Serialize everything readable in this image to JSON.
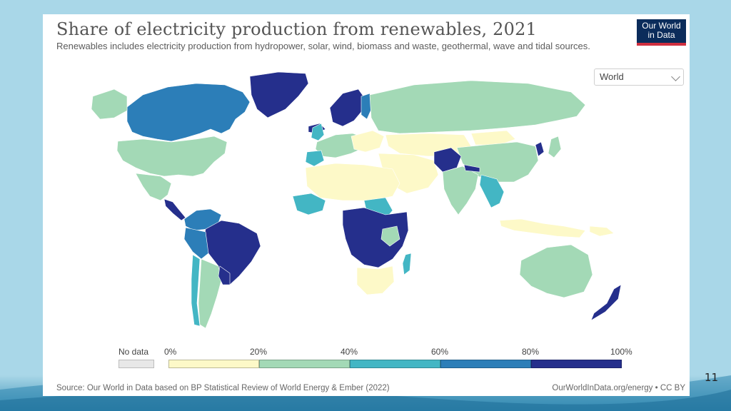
{
  "slide": {
    "number": "11"
  },
  "chart": {
    "title": "Share of electricity production from renewables, 2021",
    "subtitle": "Renewables includes electricity production from hydropower, solar, wind, biomass and waste, geothermal, wave and tidal sources.",
    "logo": {
      "line1": "Our World",
      "line2": "in Data"
    },
    "region_select": {
      "value": "World"
    },
    "legend": {
      "no_data_label": "No data",
      "ticks": [
        "0%",
        "20%",
        "40%",
        "60%",
        "80%",
        "100%"
      ],
      "bins": [
        {
          "from": 0,
          "to": 20,
          "color": "#fdf9c8"
        },
        {
          "from": 20,
          "to": 40,
          "color": "#a3d9b6"
        },
        {
          "from": 40,
          "to": 60,
          "color": "#43b6c4"
        },
        {
          "from": 60,
          "to": 80,
          "color": "#2c7eb8"
        },
        {
          "from": 80,
          "to": 100,
          "color": "#252f8c"
        }
      ],
      "no_data_color": "#e8e8e8"
    },
    "source": "Source: Our World in Data based on BP Statistical Review of World Energy & Ember (2022)",
    "footer_right": "OurWorldInData.org/energy • CC BY"
  },
  "colors": {
    "background": "#a9d7e8",
    "card": "#ffffff",
    "logo_bg": "#0b2c5b",
    "logo_accent": "#cf2f3f"
  }
}
